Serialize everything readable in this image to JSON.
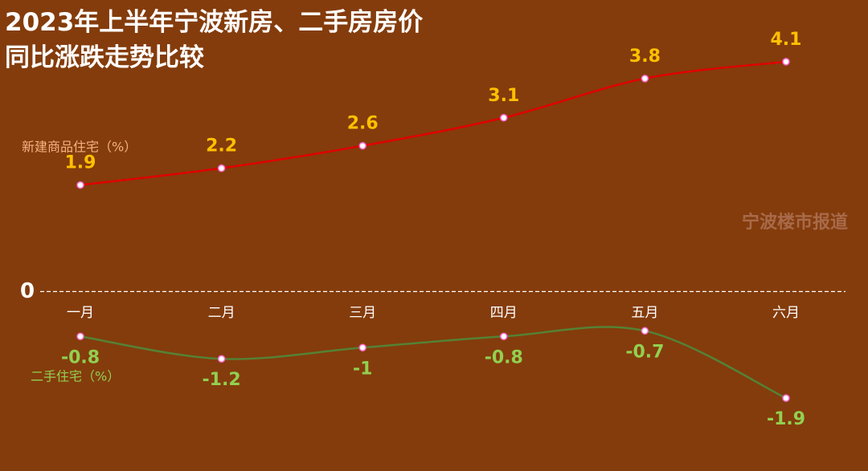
{
  "chart_data": {
    "type": "line",
    "title": "2023年上半年宁波新房、二手房房价同比涨跌走势比较",
    "annotation": "宁波楼市报道",
    "categories": [
      "一月",
      "二月",
      "三月",
      "四月",
      "五月",
      "六月"
    ],
    "series": [
      {
        "name": "新建商品住宅（%）",
        "color": "#e00000",
        "label_color": "#ffc000",
        "name_color": "#f4b183",
        "values": [
          1.9,
          2.2,
          2.6,
          3.1,
          3.8,
          4.1
        ]
      },
      {
        "name": "二手住宅（%）",
        "color": "#548235",
        "label_color": "#92d050",
        "name_color": "#92d050",
        "values": [
          -0.8,
          -1.2,
          -1,
          -0.8,
          -0.7,
          -1.9
        ]
      }
    ],
    "ylim": [
      -3.2,
      5.2
    ],
    "yticks": [
      0
    ]
  }
}
